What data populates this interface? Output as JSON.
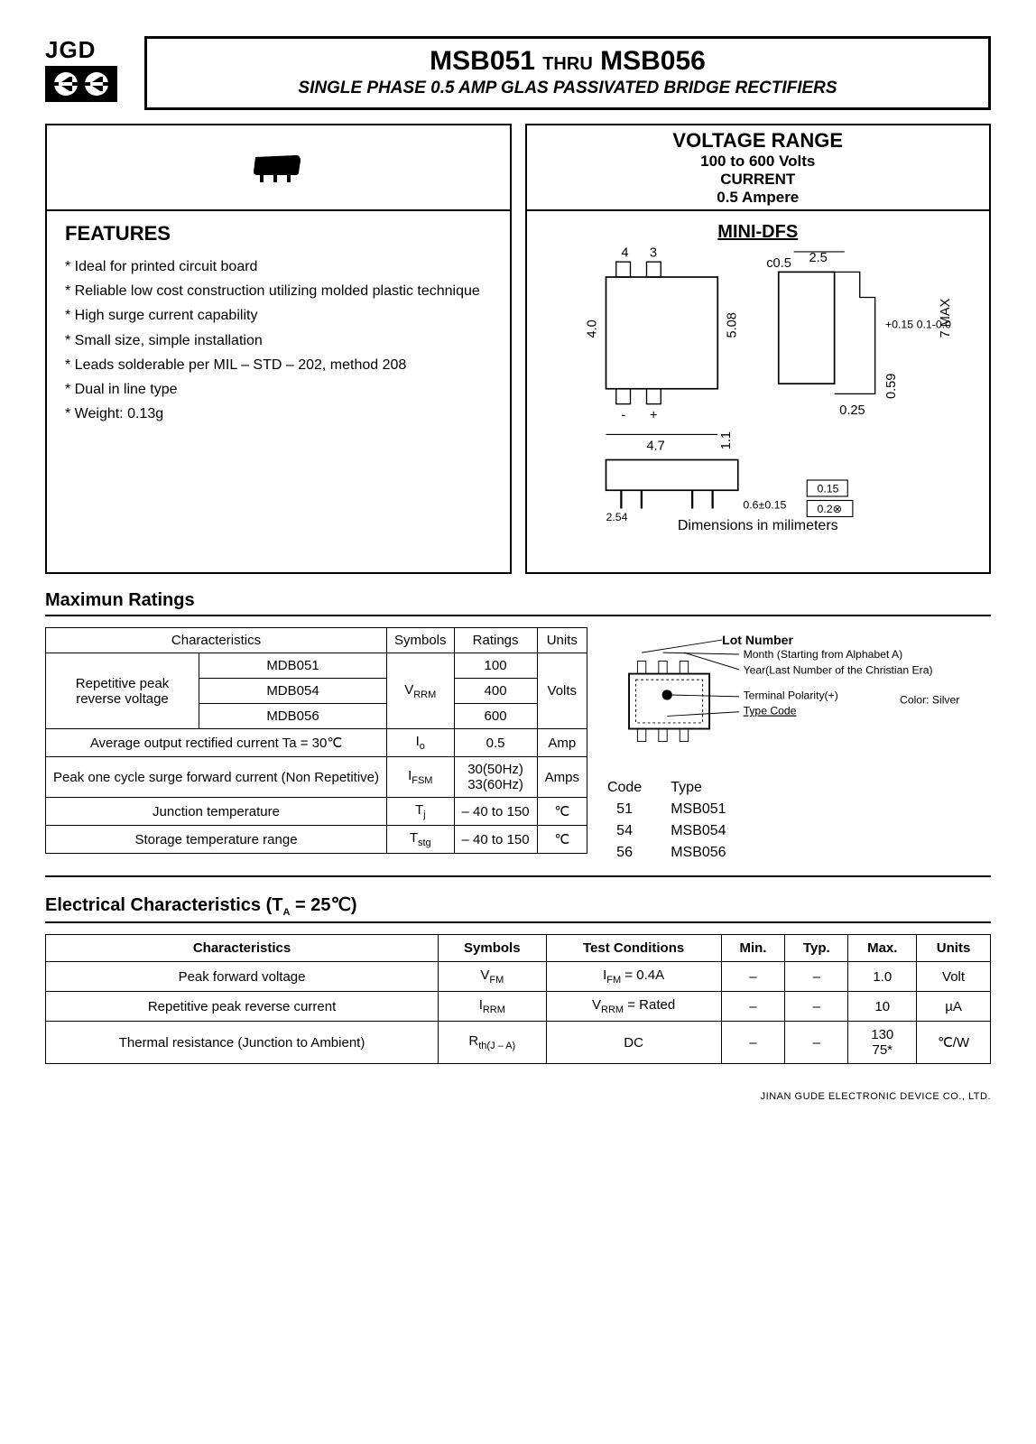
{
  "logo": {
    "text": "JGD"
  },
  "title": {
    "part_from": "MSB051",
    "thru": "THRU",
    "part_to": "MSB056",
    "subtitle": "SINGLE PHASE 0.5 AMP GLAS PASSIVATED BRIDGE RECTIFIERS"
  },
  "voltage_panel": {
    "heading": "VOLTAGE RANGE",
    "volts": "100 to 600 Volts",
    "current_label": "CURRENT",
    "current": "0.5 Ampere"
  },
  "features": {
    "heading": "FEATURES",
    "items": [
      "Ideal for printed circuit board",
      "Reliable low cost construction utilizing molded plastic technique",
      "High surge current capability",
      "Small size, simple installation",
      "Leads solderable per MIL – STD – 202, method 208",
      "Dual in line type",
      "Weight: 0.13g"
    ]
  },
  "package": {
    "heading": "MINI-DFS",
    "note": "Dimensions in milimeters",
    "dims": {
      "pin4": "4",
      "pin3": "3",
      "pin_minus": "-",
      "pin_plus": "+",
      "c05": "c0.5",
      "w25": "2.5",
      "h40": "4.0",
      "h508": "5.08",
      "tol": "+0.15\n0.1-0.0",
      "max7": "7 MAX",
      "w47": "4.7",
      "w025": "0.25",
      "h059": "0.59",
      "h11": "1.1",
      "p254": "2.54",
      "p06": "0.6±0.15",
      "t015": "0.15",
      "t02": "0.2⊗"
    }
  },
  "max_ratings": {
    "heading": "Maximun Ratings",
    "columns": [
      "Characteristics",
      "Symbols",
      "Ratings",
      "Units"
    ],
    "rpv_label": "Repetitive peak reverse voltage",
    "rpv_parts": [
      "MDB051",
      "MDB054",
      "MDB056"
    ],
    "rpv_symbol": "VRRM",
    "rpv_values": [
      "100",
      "400",
      "600"
    ],
    "rpv_unit": "Volts",
    "io_label": "Average output rectified current Ta = 30℃",
    "io_symbol": "Io",
    "io_value": "0.5",
    "io_unit": "Amp",
    "ifsm_label": "Peak one cycle surge forward current (Non Repetitive)",
    "ifsm_symbol": "IFSM",
    "ifsm_value": "30(50Hz)\n33(60Hz)",
    "ifsm_unit": "Amps",
    "tj_label": "Junction temperature",
    "tj_symbol": "Tj",
    "tj_value": "– 40 to 150",
    "tj_unit": "℃",
    "tstg_label": "Storage temperature range",
    "tstg_symbol": "Tstg",
    "tstg_value": "– 40 to 150",
    "tstg_unit": "℃"
  },
  "marking": {
    "lot": "Lot Number",
    "month": "Month (Starting from Alphabet A)",
    "year": "Year(Last Number of the Christian Era)",
    "polarity": "Terminal Polarity(+)",
    "typecode": "Type Code",
    "color": "Color: Silver",
    "code_h": "Code",
    "type_h": "Type",
    "rows": [
      {
        "code": "51",
        "type": "MSB051"
      },
      {
        "code": "54",
        "type": "MSB054"
      },
      {
        "code": "56",
        "type": "MSB056"
      }
    ]
  },
  "elec": {
    "heading": "Electrical Characteristics (TA = 25℃)",
    "columns": [
      "Characteristics",
      "Symbols",
      "Test Conditions",
      "Min.",
      "Typ.",
      "Max.",
      "Units"
    ],
    "rows": [
      {
        "c": "Peak forward voltage",
        "s": "VFM",
        "t": "IFM = 0.4A",
        "min": "–",
        "typ": "–",
        "max": "1.0",
        "u": "Volt"
      },
      {
        "c": "Repetitive peak reverse current",
        "s": "IRRM",
        "t": "VRRM = Rated",
        "min": "–",
        "typ": "–",
        "max": "10",
        "u": "µA"
      },
      {
        "c": "Thermal resistance (Junction to Ambient)",
        "s": "Rth(J – A)",
        "t": "DC",
        "min": "–",
        "typ": "–",
        "max": "130\n75*",
        "u": "℃/W"
      }
    ]
  },
  "footer": "JINAN GUDE ELECTRONIC DEVICE CO., LTD."
}
